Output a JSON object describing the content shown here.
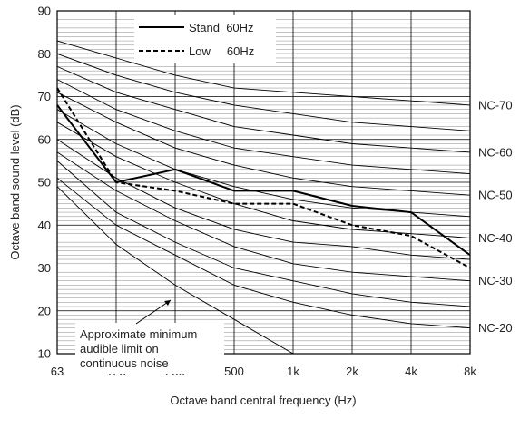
{
  "chart_data": {
    "type": "line",
    "xlabel": "Octave band central frequency (Hz)",
    "ylabel": "Octave band sound level (dB)",
    "categories": [
      "63",
      "125",
      "250",
      "500",
      "1k",
      "2k",
      "4k",
      "8k"
    ],
    "ylim": [
      10,
      90
    ],
    "y_ticks": [
      "10",
      "20",
      "30",
      "40",
      "50",
      "60",
      "70",
      "80",
      "90"
    ],
    "minor_grid_step_db": 1,
    "grid": true,
    "legend_position": "top-center",
    "series": [
      {
        "name": "Stand  60Hz",
        "style": "solid",
        "values": [
          68,
          50,
          53,
          48,
          48,
          44.5,
          43,
          33
        ]
      },
      {
        "name": "Low     60Hz",
        "style": "dashed",
        "values": [
          72,
          50,
          48,
          45,
          45,
          40,
          37.5,
          30
        ]
      }
    ],
    "nc_curves": [
      {
        "label": "",
        "values": [
          49,
          35.5,
          26,
          18,
          10,
          5,
          2,
          0
        ]
      },
      {
        "label": "NC-20",
        "values": [
          51,
          40,
          33,
          26,
          22,
          19,
          17,
          16
        ]
      },
      {
        "label": "",
        "values": [
          55,
          43,
          36,
          30,
          27,
          24,
          22,
          21
        ]
      },
      {
        "label": "NC-30",
        "values": [
          57,
          48,
          41,
          35,
          31,
          29,
          28,
          27
        ]
      },
      {
        "label": "",
        "values": [
          60,
          51,
          44,
          39,
          36,
          35,
          33,
          32
        ]
      },
      {
        "label": "NC-40",
        "values": [
          64,
          56,
          50,
          45,
          41,
          39,
          38,
          37
        ]
      },
      {
        "label": "",
        "values": [
          67,
          59,
          53,
          49,
          46,
          44,
          43,
          42
        ]
      },
      {
        "label": "NC-50",
        "values": [
          71,
          64,
          58,
          54,
          51,
          49,
          48,
          47
        ]
      },
      {
        "label": "",
        "values": [
          74,
          67,
          62,
          58,
          56,
          54,
          53,
          52
        ]
      },
      {
        "label": "NC-60",
        "values": [
          77,
          71,
          67,
          63,
          61,
          59,
          58,
          57
        ]
      },
      {
        "label": "",
        "values": [
          80,
          75,
          71,
          68,
          66,
          64,
          63,
          62
        ]
      },
      {
        "label": "NC-70",
        "values": [
          83,
          79,
          75,
          72,
          71,
          70,
          69,
          68
        ]
      }
    ],
    "annotation": {
      "lines": [
        "Approximate minimum",
        "audible limit on",
        "continuous noise"
      ],
      "points_to": {
        "x": "250",
        "y": 25
      }
    }
  }
}
